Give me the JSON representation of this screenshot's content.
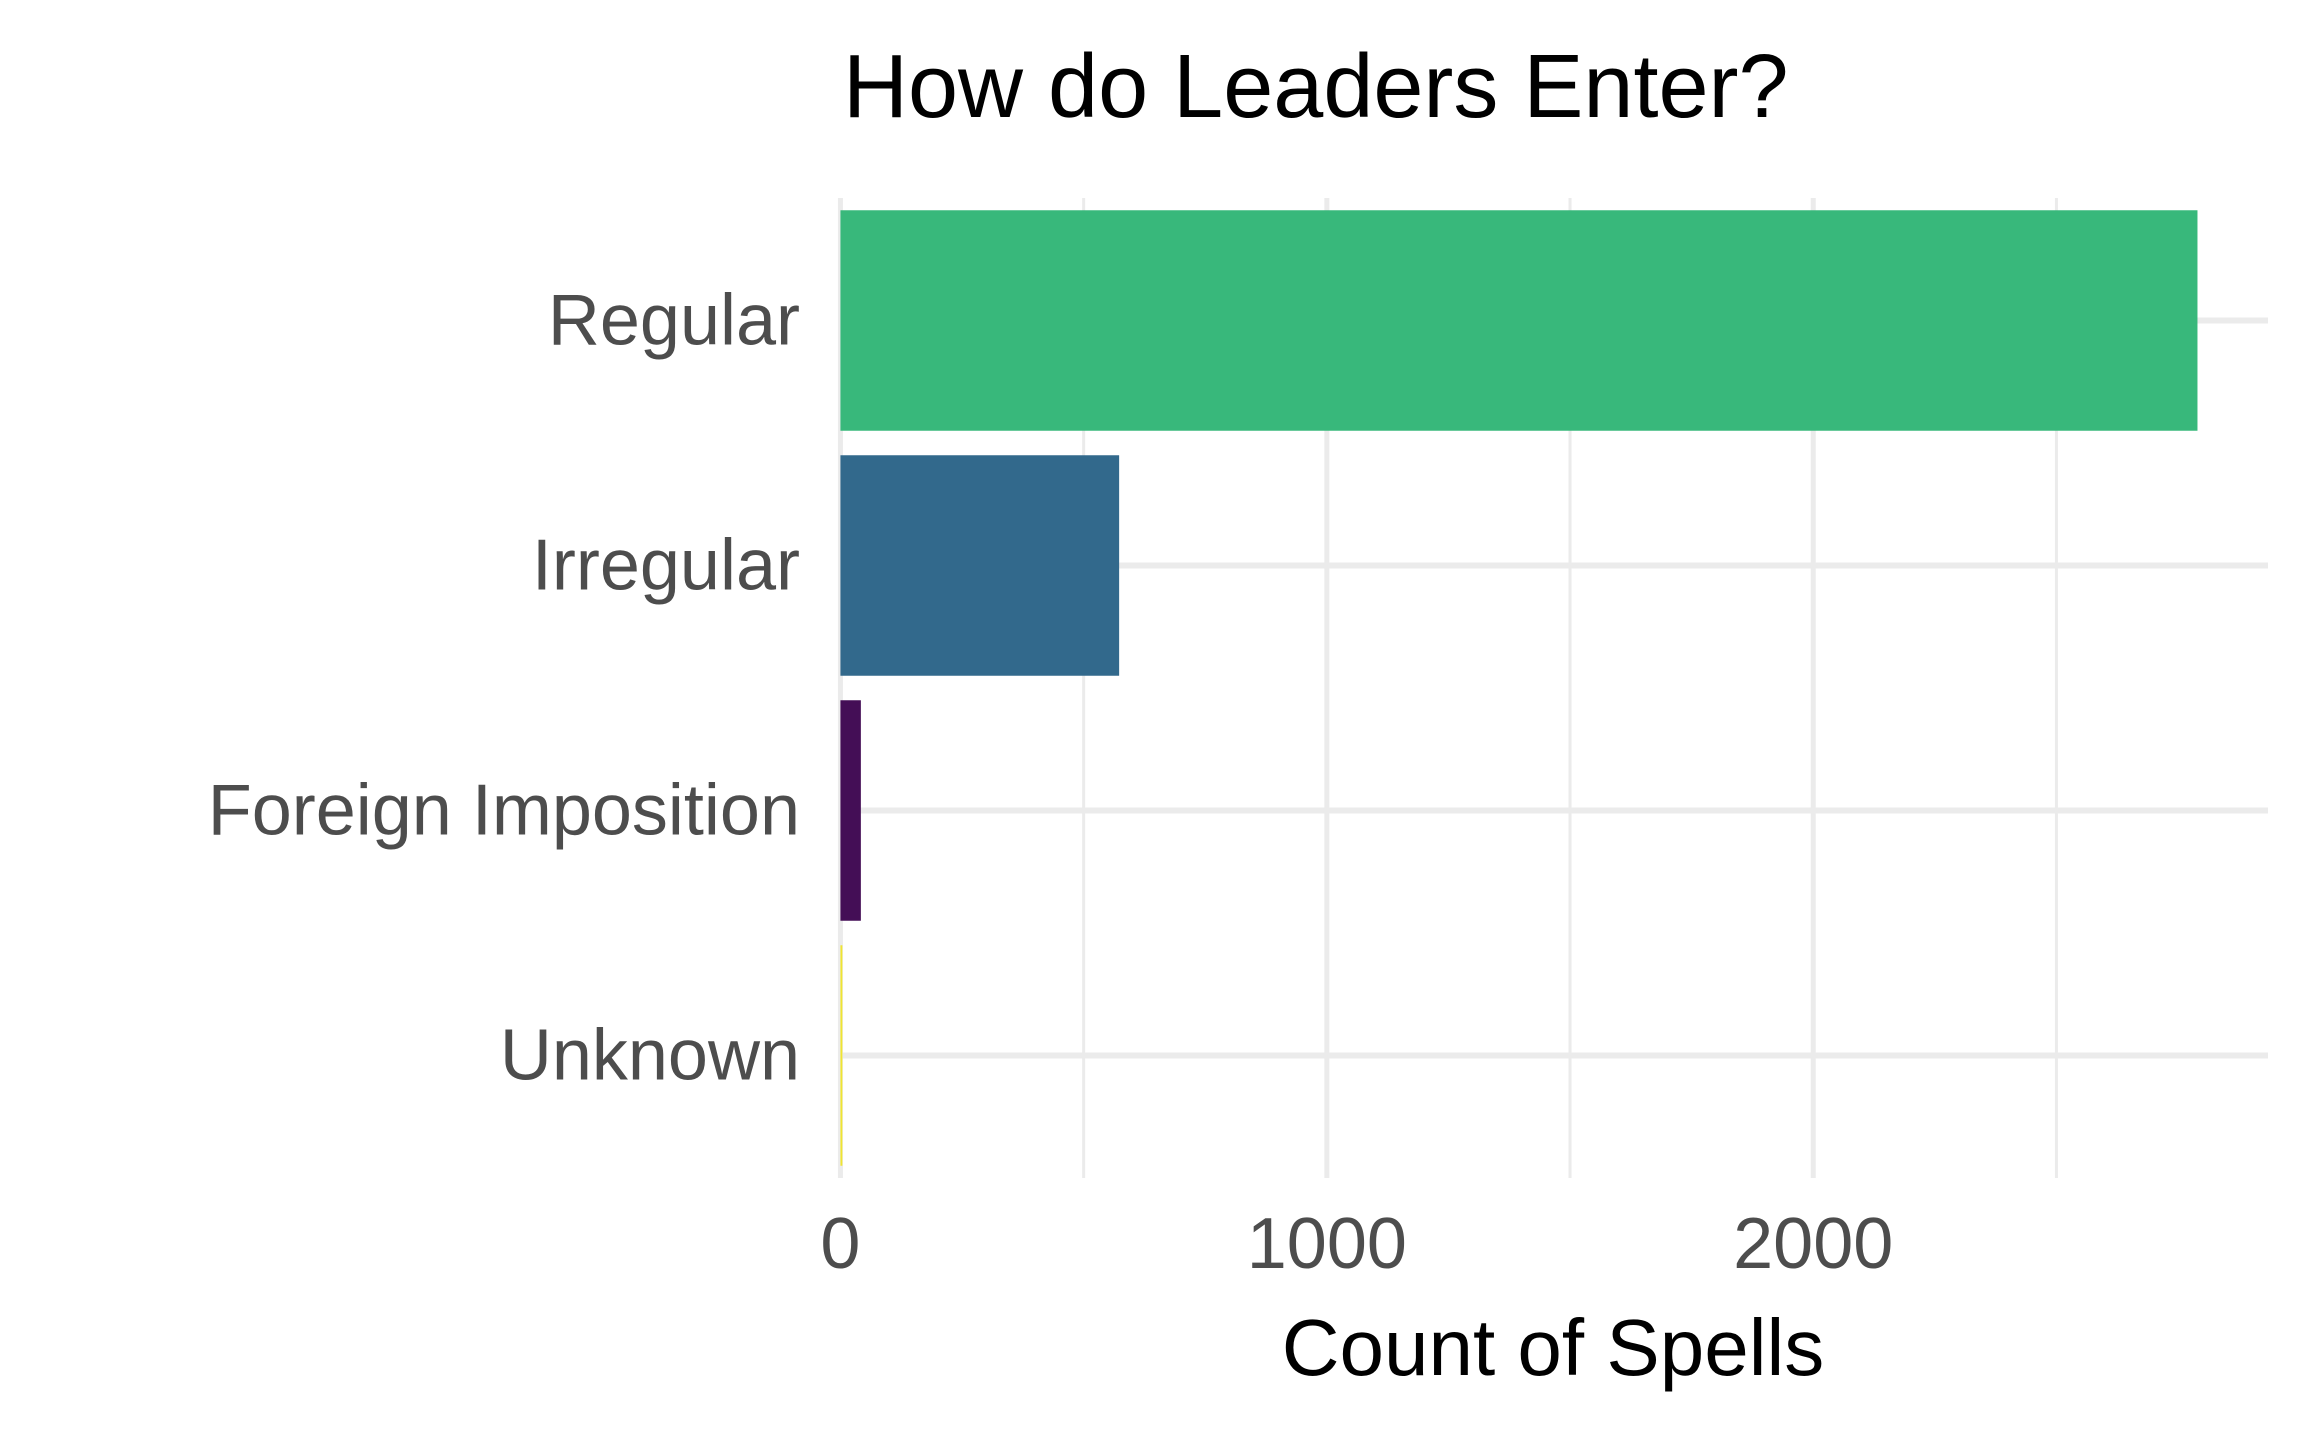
{
  "chart_data": {
    "type": "bar",
    "orientation": "horizontal",
    "title": "How do Leaders Enter?",
    "xlabel": "Count of Spells",
    "ylabel": "",
    "categories": [
      "Regular",
      "Irregular",
      "Foreign Imposition",
      "Unknown"
    ],
    "values": [
      2790,
      573,
      42,
      4
    ],
    "colors": [
      "#38b87b",
      "#32698c",
      "#440e56",
      "#f0e532"
    ],
    "xlim": [
      -5,
      2935
    ],
    "xticks": [
      0,
      1000,
      2000
    ],
    "xtick_labels": [
      "0",
      "1000",
      "2000"
    ],
    "x_minor_gridlines": [
      500,
      1500,
      2500
    ],
    "grid": true,
    "legend": "none",
    "theme": {
      "grid_color": "#ebebeb",
      "text_color": "#4d4d4d",
      "title_color": "#000000"
    }
  }
}
